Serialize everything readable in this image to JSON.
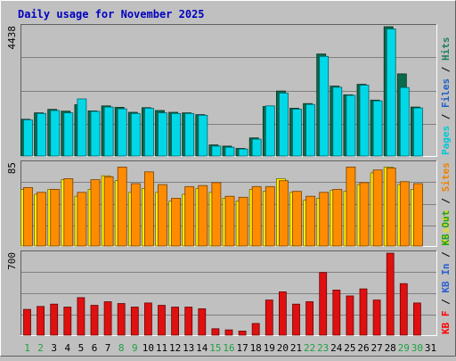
{
  "chart_data": {
    "type": "bar",
    "title": "Daily usage for November 2025",
    "categories": [
      "1",
      "2",
      "3",
      "4",
      "5",
      "6",
      "7",
      "8",
      "9",
      "10",
      "11",
      "12",
      "13",
      "14",
      "15",
      "16",
      "17",
      "18",
      "19",
      "20",
      "21",
      "22",
      "23",
      "24",
      "25",
      "26",
      "27",
      "28",
      "29",
      "30",
      "31"
    ],
    "weekend_days": [
      1,
      2,
      8,
      9,
      15,
      16,
      22,
      23,
      29,
      30
    ],
    "panels": [
      {
        "id": "traffic-panel",
        "max_label": "4438",
        "ymax": 4438,
        "side_label": [
          {
            "text": "Pages",
            "color": "#00c8d8"
          },
          {
            "text": " / ",
            "color": "#000000"
          },
          {
            "text": "Files",
            "color": "#1e60c8"
          },
          {
            "text": " / ",
            "color": "#000000"
          },
          {
            "text": "Hits",
            "color": "#208060"
          }
        ],
        "series": [
          {
            "name": "Hits",
            "color": "#0a6a4a",
            "values": [
              1260,
              1480,
              1600,
              1540,
              1760,
              1550,
              1720,
              1670,
              1500,
              1660,
              1560,
              1500,
              1480,
              1420,
              380,
              340,
              260,
              620,
              1700,
              2230,
              1640,
              1800,
              3500,
              2400,
              2100,
              2460,
              1920,
              4438,
              2820,
              1680,
              0
            ]
          },
          {
            "name": "Pages",
            "color": "#00d8e8",
            "values": [
              1240,
              1460,
              1560,
              1480,
              1960,
              1530,
              1680,
              1620,
              1460,
              1640,
              1480,
              1460,
              1460,
              1400,
              340,
              300,
              240,
              580,
              1720,
              2160,
              1610,
              1770,
              3420,
              2360,
              2080,
              2430,
              1890,
              4360,
              2350,
              1650,
              0
            ]
          }
        ]
      },
      {
        "id": "visits-panel",
        "max_label": "85",
        "ymax": 85,
        "side_label": [
          {
            "text": "Visits",
            "color": "#e8e000"
          },
          {
            "text": " / ",
            "color": "#000000"
          },
          {
            "text": "Sites",
            "color": "#f08000"
          }
        ],
        "series": [
          {
            "name": "Visits",
            "color": "#ffee00",
            "values": [
              58,
              53,
              58,
              68,
              51,
              58,
              72,
              67,
              55,
              59,
              55,
              46,
              53,
              59,
              55,
              49,
              46,
              58,
              56,
              69,
              55,
              47,
              49,
              57,
              56,
              63,
              75,
              81,
              63,
              58,
              0
            ]
          },
          {
            "name": "Sites",
            "color": "#ff8c00",
            "values": [
              60,
              55,
              58,
              69,
              55,
              68,
              71,
              81,
              64,
              76,
              63,
              49,
              61,
              62,
              65,
              51,
              50,
              61,
              61,
              67,
              56,
              51,
              55,
              58,
              81,
              65,
              78,
              80,
              66,
              64,
              0
            ]
          }
        ]
      },
      {
        "id": "kbytes-panel",
        "max_label": "700",
        "ymax": 700,
        "side_label": [
          {
            "text": "KB F",
            "color": "#ff0000"
          },
          {
            "text": " / ",
            "color": "#000000"
          },
          {
            "text": "KB In",
            "color": "#2860d0"
          },
          {
            "text": " / ",
            "color": "#000000"
          },
          {
            "text": "KB Out",
            "color": "#20a020"
          }
        ],
        "series": [
          {
            "name": "KB F",
            "color": "#e01010",
            "values": [
              220,
              245,
              265,
              240,
              320,
              255,
              285,
              270,
              240,
              275,
              255,
              240,
              240,
              225,
              55,
              45,
              35,
              100,
              300,
              370,
              265,
              285,
              535,
              385,
              335,
              395,
              300,
              700,
              440,
              275,
              0
            ]
          }
        ]
      }
    ]
  },
  "colors": {
    "background": "#c0c0c0",
    "title": "#0000c0",
    "weekday_label": "#000000",
    "weekend_label": "#20a040"
  }
}
